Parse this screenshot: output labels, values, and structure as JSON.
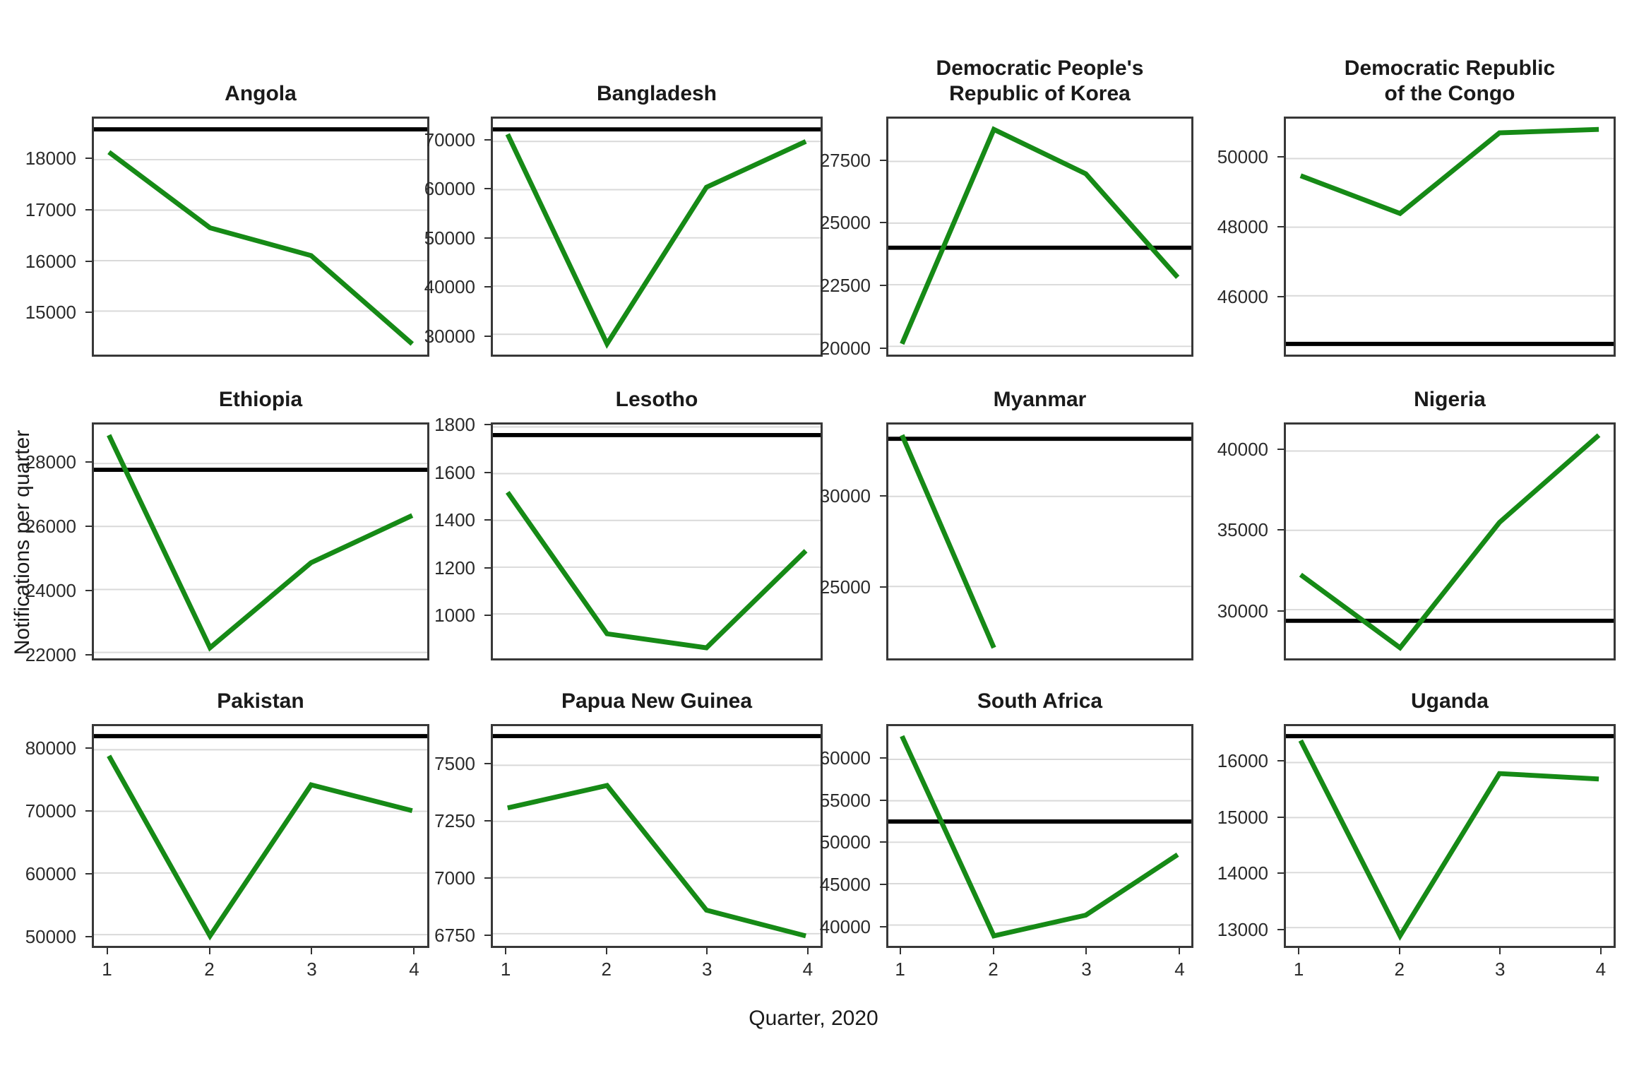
{
  "chart_data": {
    "type": "line",
    "x_label": "Quarter, 2020",
    "y_label": "Notifications per quarter",
    "x_ticks": [
      1,
      2,
      3,
      4
    ],
    "series_color": "#168a16",
    "reference_line_color": "#000000",
    "grid_color": "#d9d9d9",
    "legend_position": "none",
    "grid": "horizontal-only",
    "panels": [
      {
        "title": "Angola",
        "title_lines": [
          "Angola"
        ],
        "x": [
          1,
          2,
          3,
          4
        ],
        "values": [
          18150,
          16650,
          16100,
          14350
        ],
        "reference_line": 18600,
        "ylim": [
          14138,
          18812
        ],
        "yticks": [
          15000,
          16000,
          17000,
          18000
        ]
      },
      {
        "title": "Bangladesh",
        "title_lines": [
          "Bangladesh"
        ],
        "x": [
          1,
          2,
          3,
          4
        ],
        "values": [
          71500,
          28000,
          60500,
          70000
        ],
        "reference_line": 72500,
        "ylim": [
          25775,
          74725
        ],
        "yticks": [
          30000,
          40000,
          50000,
          60000,
          70000
        ]
      },
      {
        "title": "Democratic People's Republic of Korea",
        "title_lines": [
          "Democratic People's",
          "Republic of Korea"
        ],
        "x": [
          1,
          2,
          3,
          4
        ],
        "values": [
          20100,
          28800,
          27000,
          22800
        ],
        "reference_line": 24000,
        "ylim": [
          19665,
          29235
        ],
        "yticks": [
          20000,
          22500,
          25000,
          27500
        ]
      },
      {
        "title": "Democratic Republic of the Congo",
        "title_lines": [
          "Democratic Republic",
          "of the Congo"
        ],
        "x": [
          1,
          2,
          3,
          4
        ],
        "values": [
          49500,
          48400,
          50750,
          50850
        ],
        "reference_line": 44600,
        "ylim": [
          44288,
          51162
        ],
        "yticks": [
          46000,
          48000,
          50000
        ]
      },
      {
        "title": "Ethiopia",
        "title_lines": [
          "Ethiopia"
        ],
        "x": [
          1,
          2,
          3,
          4
        ],
        "values": [
          28900,
          22150,
          24850,
          26350
        ],
        "reference_line": 27800,
        "ylim": [
          21813,
          29237
        ],
        "yticks": [
          22000,
          24000,
          26000,
          28000
        ]
      },
      {
        "title": "Lesotho",
        "title_lines": [
          "Lesotho"
        ],
        "x": [
          1,
          2,
          3,
          4
        ],
        "values": [
          1520,
          915,
          855,
          1270
        ],
        "reference_line": 1765,
        "ylim": [
          810,
          1810
        ],
        "yticks": [
          1000,
          1200,
          1400,
          1600,
          1800
        ]
      },
      {
        "title": "Myanmar",
        "title_lines": [
          "Myanmar"
        ],
        "x": [
          1,
          2,
          3,
          4
        ],
        "values": [
          33400,
          21600,
          null,
          null
        ],
        "reference_line": 33200,
        "ylim": [
          21010,
          33990
        ],
        "yticks": [
          25000,
          30000
        ]
      },
      {
        "title": "Nigeria",
        "title_lines": [
          "Nigeria"
        ],
        "x": [
          1,
          2,
          3,
          4
        ],
        "values": [
          32200,
          27600,
          35500,
          41000
        ],
        "reference_line": 29300,
        "ylim": [
          26930,
          41670
        ],
        "yticks": [
          30000,
          35000,
          40000
        ]
      },
      {
        "title": "Pakistan",
        "title_lines": [
          "Pakistan"
        ],
        "x": [
          1,
          2,
          3,
          4
        ],
        "values": [
          79000,
          49800,
          74300,
          70100
        ],
        "reference_line": 82200,
        "ylim": [
          48180,
          83820
        ],
        "yticks": [
          50000,
          60000,
          70000,
          80000
        ]
      },
      {
        "title": "Papua New Guinea",
        "title_lines": [
          "Papua New Guinea"
        ],
        "x": [
          1,
          2,
          3,
          4
        ],
        "values": [
          7310,
          7410,
          6855,
          6740
        ],
        "reference_line": 7630,
        "ylim": [
          6696,
          7674
        ],
        "yticks": [
          6750,
          7000,
          7250,
          7500
        ]
      },
      {
        "title": "South Africa",
        "title_lines": [
          "South Africa"
        ],
        "x": [
          1,
          2,
          3,
          4
        ],
        "values": [
          62800,
          38700,
          41200,
          48500
        ],
        "reference_line": 52500,
        "ylim": [
          37495,
          64005
        ],
        "yticks": [
          40000,
          45000,
          50000,
          55000,
          60000
        ]
      },
      {
        "title": "Uganda",
        "title_lines": [
          "Uganda"
        ],
        "x": [
          1,
          2,
          3,
          4
        ],
        "values": [
          16400,
          12850,
          15800,
          15700
        ],
        "reference_line": 16480,
        "ylim": [
          12669,
          16661
        ],
        "yticks": [
          13000,
          14000,
          15000,
          16000
        ]
      }
    ]
  }
}
